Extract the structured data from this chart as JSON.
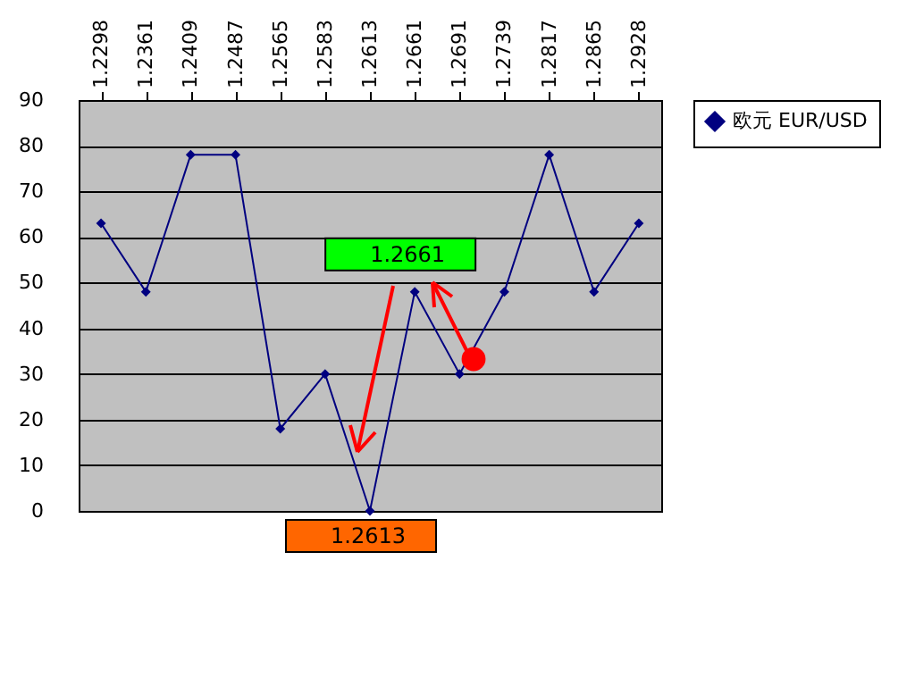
{
  "chart_data": {
    "type": "line",
    "categories": [
      "1.2298",
      "1.2361",
      "1.2409",
      "1.2487",
      "1.2565",
      "1.2583",
      "1.2613",
      "1.2661",
      "1.2691",
      "1.2739",
      "1.2817",
      "1.2865",
      "1.2928"
    ],
    "series": [
      {
        "name": "欧元 EUR/USD",
        "color": "#000080",
        "values": [
          63,
          48,
          78,
          78,
          18,
          30,
          0,
          48,
          30,
          48,
          78,
          48,
          63
        ]
      }
    ],
    "ylim": [
      0,
      90
    ],
    "yticks": [
      0,
      10,
      20,
      30,
      40,
      50,
      60,
      70,
      80,
      90
    ],
    "grid": "y",
    "legend": "right",
    "marker": "diamond",
    "line_style": "solid",
    "annotations": [
      {
        "text": "1.2661",
        "x": "1.2661",
        "y": 48
      },
      {
        "text": "1.2613",
        "x": "1.2613",
        "y": 0
      }
    ]
  }
}
